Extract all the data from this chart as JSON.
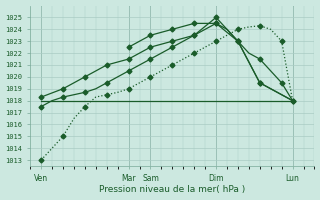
{
  "bg_color": "#cce8e0",
  "grid_color": "#aaccc4",
  "line_color": "#1a5c2a",
  "marker_color": "#1a5c2a",
  "xlabel": "Pression niveau de la mer( hPa )",
  "ylim": [
    1012.5,
    1026.0
  ],
  "yticks": [
    1013,
    1014,
    1015,
    1016,
    1017,
    1018,
    1019,
    1020,
    1021,
    1022,
    1023,
    1024,
    1025
  ],
  "xmin": 0,
  "xmax": 13,
  "day_positions": [
    0.5,
    4.5,
    5.5,
    8.5,
    12.0
  ],
  "day_labels": [
    "Ven",
    "Mar",
    "Sam",
    "Dim",
    "Lun"
  ],
  "vline_positions": [
    0.5,
    4.5,
    5.5,
    8.5,
    12.0
  ],
  "line1_dotted": {
    "x": [
      0.5,
      1.0,
      1.5,
      2.0,
      2.5,
      3.0,
      3.5,
      4.0,
      4.5,
      5.0,
      5.5,
      6.0,
      6.5,
      7.0,
      7.5,
      8.0,
      8.5,
      9.0,
      9.5,
      10.0,
      10.5,
      11.0,
      11.5,
      12.0
    ],
    "y": [
      1013.0,
      1014.0,
      1015.0,
      1016.5,
      1017.5,
      1018.3,
      1018.5,
      1018.7,
      1019.0,
      1019.5,
      1020.0,
      1020.5,
      1021.0,
      1021.5,
      1022.0,
      1022.5,
      1023.0,
      1023.5,
      1024.0,
      1024.2,
      1024.3,
      1024.0,
      1023.0,
      1018.0
    ]
  },
  "line_flat": {
    "x": [
      0.5,
      12.0
    ],
    "y": [
      1018.0,
      1018.0
    ]
  },
  "line2": {
    "x": [
      0.5,
      1.0,
      1.5,
      2.0,
      2.5,
      3.0,
      3.5,
      4.0,
      4.5,
      5.0,
      5.5,
      6.0,
      6.5,
      7.0,
      7.5,
      8.0,
      8.5,
      9.0,
      9.5,
      10.0,
      10.5,
      11.0,
      11.5,
      12.0
    ],
    "y": [
      1017.5,
      1018.0,
      1018.3,
      1018.5,
      1018.7,
      1019.0,
      1019.5,
      1020.0,
      1020.5,
      1021.0,
      1021.5,
      1022.0,
      1022.5,
      1023.0,
      1023.5,
      1024.0,
      1024.5,
      1024.0,
      1023.0,
      1022.0,
      1021.5,
      1020.5,
      1019.5,
      1018.0
    ]
  },
  "line3": {
    "x": [
      0.5,
      1.5,
      2.5,
      3.5,
      4.5,
      5.5,
      6.5,
      7.5,
      8.5,
      9.5,
      10.5,
      12.0
    ],
    "y": [
      1018.3,
      1019.0,
      1020.0,
      1021.0,
      1021.5,
      1022.5,
      1023.0,
      1023.5,
      1025.0,
      1023.0,
      1019.5,
      1018.0
    ]
  },
  "line4": {
    "x": [
      4.5,
      5.5,
      6.5,
      7.5,
      8.5,
      9.5,
      10.5,
      12.0
    ],
    "y": [
      1022.5,
      1023.5,
      1024.0,
      1024.5,
      1024.5,
      1023.0,
      1019.5,
      1018.0
    ]
  }
}
